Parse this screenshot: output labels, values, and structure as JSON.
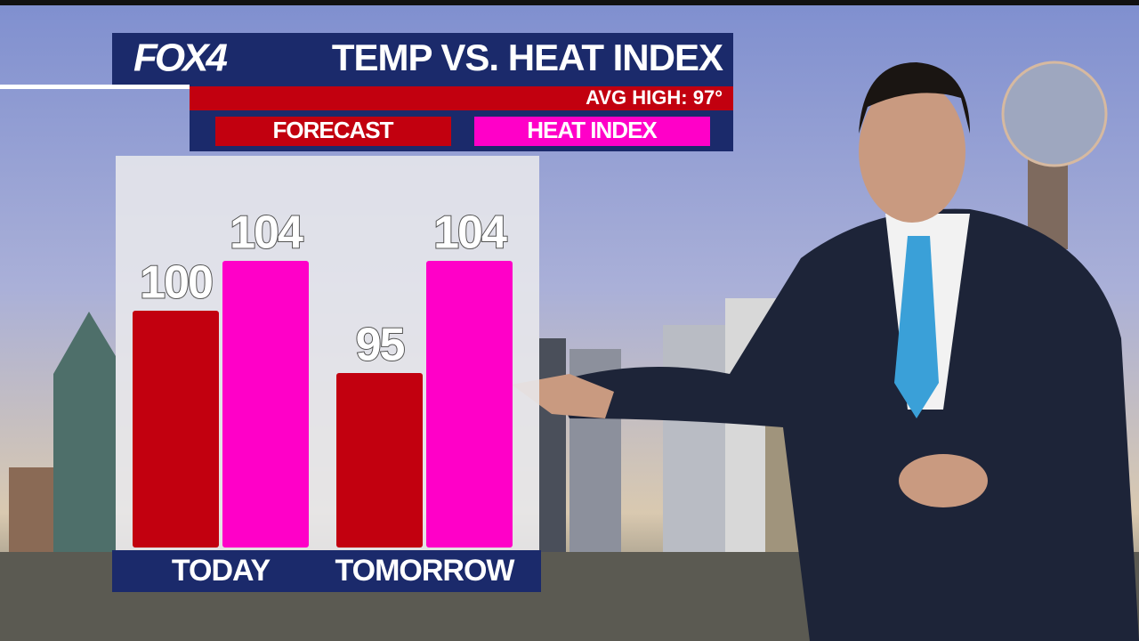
{
  "chart_data": {
    "type": "bar",
    "logo": "FOX4",
    "title": "TEMP VS. HEAT INDEX",
    "annotation": "AVG HIGH: 97°",
    "categories": [
      "TODAY",
      "TOMORROW"
    ],
    "series": [
      {
        "name": "FORECAST",
        "color": "#c2000f",
        "values": [
          100,
          95
        ]
      },
      {
        "name": "HEAT INDEX",
        "color": "#ff00c8",
        "values": [
          104,
          104
        ]
      }
    ],
    "ylim": [
      81,
      105.5
    ]
  }
}
